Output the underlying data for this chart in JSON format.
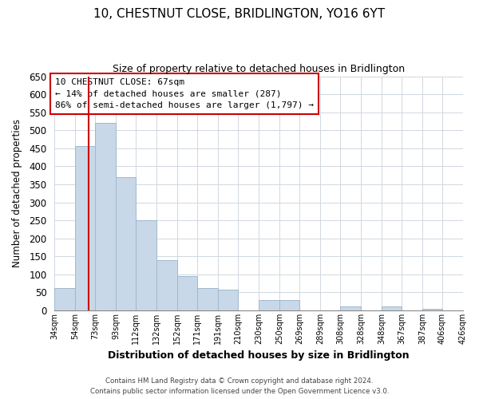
{
  "title": "10, CHESTNUT CLOSE, BRIDLINGTON, YO16 6YT",
  "subtitle": "Size of property relative to detached houses in Bridlington",
  "xlabel": "Distribution of detached houses by size in Bridlington",
  "ylabel": "Number of detached properties",
  "bar_color": "#c8d8e8",
  "bar_edge_color": "#a0b8cc",
  "property_line_color": "#cc0000",
  "property_size": 67,
  "property_label": "10 CHESTNUT CLOSE: 67sqm",
  "annotation_line1": "← 14% of detached houses are smaller (287)",
  "annotation_line2": "86% of semi-detached houses are larger (1,797) →",
  "bins": [
    34,
    54,
    73,
    93,
    112,
    132,
    152,
    171,
    191,
    210,
    230,
    250,
    269,
    289,
    308,
    328,
    348,
    367,
    387,
    406,
    426
  ],
  "counts": [
    63,
    457,
    520,
    370,
    250,
    140,
    95,
    62,
    57,
    0,
    28,
    28,
    0,
    0,
    12,
    0,
    10,
    0,
    5,
    0,
    2
  ],
  "ylim": [
    0,
    650
  ],
  "yticks": [
    0,
    50,
    100,
    150,
    200,
    250,
    300,
    350,
    400,
    450,
    500,
    550,
    600,
    650
  ],
  "tick_labels": [
    "34sqm",
    "54sqm",
    "73sqm",
    "93sqm",
    "112sqm",
    "132sqm",
    "152sqm",
    "171sqm",
    "191sqm",
    "210sqm",
    "230sqm",
    "250sqm",
    "269sqm",
    "289sqm",
    "308sqm",
    "328sqm",
    "348sqm",
    "367sqm",
    "387sqm",
    "406sqm",
    "426sqm"
  ],
  "footer_line1": "Contains HM Land Registry data © Crown copyright and database right 2024.",
  "footer_line2": "Contains public sector information licensed under the Open Government Licence v3.0.",
  "background_color": "#ffffff",
  "grid_color": "#d0d8e0"
}
